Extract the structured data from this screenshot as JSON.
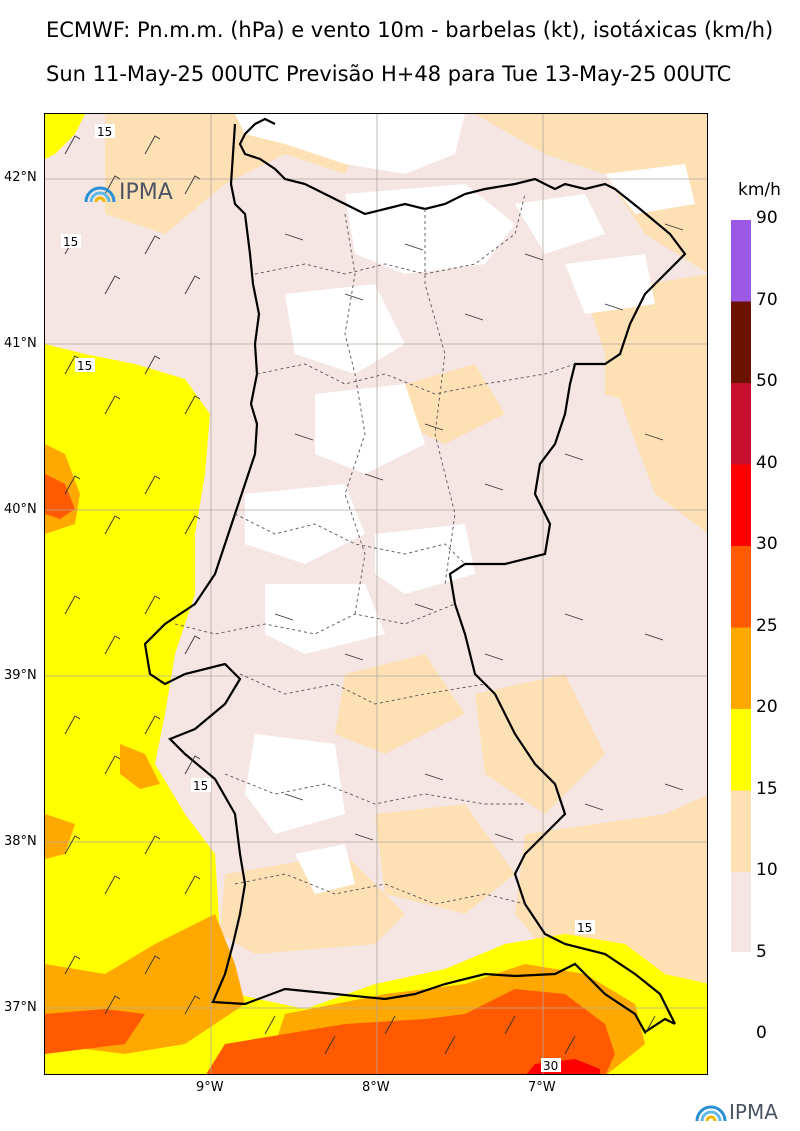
{
  "header": {
    "title_line1": "ECMWF: Pn.m.m. (hPa) e vento 10m - barbelas (kt), isotáxicas (km/h)",
    "title_line2": "Sun 11-May-25 00UTC Previsão H+48 para Tue 13-May-25 00UTC"
  },
  "map": {
    "lat_labels": [
      "42°N",
      "41°N",
      "40°N",
      "39°N",
      "38°N",
      "37°N"
    ],
    "lon_labels": [
      "9°W",
      "8°W",
      "7°W"
    ],
    "contour_labels": [
      "15",
      "15",
      "15",
      "15",
      "15",
      "30"
    ]
  },
  "colorbar": {
    "unit": "km/h",
    "labels": [
      "90",
      "70",
      "50",
      "40",
      "30",
      "25",
      "20",
      "15",
      "10",
      "5",
      "0"
    ],
    "colors": [
      "#9b59e6",
      "#6b1200",
      "#c8102e",
      "#ff0000",
      "#ff5a00",
      "#ffa800",
      "#ffff00",
      "#fde0b4",
      "#f5e6e3"
    ]
  },
  "logos": {
    "top": "IPMA",
    "bottom": "IPMA"
  }
}
